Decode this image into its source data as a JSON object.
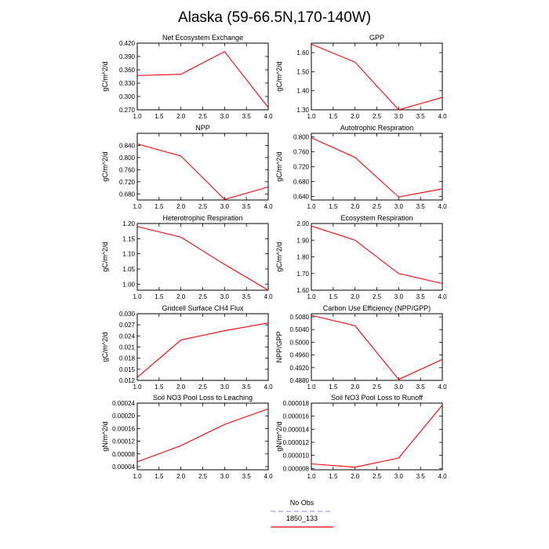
{
  "figure": {
    "title": "Alaska (59-66.5N,170-140W)"
  },
  "legend": {
    "items": [
      {
        "label": "No Obs",
        "color": "#9a9aff",
        "style": "dashed"
      },
      {
        "label": "1850_133",
        "color": "#ff0000",
        "style": "solid"
      }
    ]
  },
  "chart_data": [
    {
      "type": "line",
      "title": "Net Ecosystem Exchange",
      "xlabel": "",
      "ylabel": "gC/m^2/d",
      "x": [
        1.0,
        2.0,
        3.0,
        4.0
      ],
      "xlim": [
        1.0,
        4.0
      ],
      "xticks": [
        1.0,
        1.5,
        2.0,
        2.5,
        3.0,
        3.5,
        4.0
      ],
      "xtick_labels": [
        "1.0",
        "1.5",
        "2.0",
        "2.5",
        "3.0",
        "3.5",
        "4.0"
      ],
      "ylim": [
        0.27,
        0.42
      ],
      "yticks": [
        0.27,
        0.3,
        0.33,
        0.36,
        0.39,
        0.42
      ],
      "ytick_labels": [
        "0.270",
        "0.300",
        "0.330",
        "0.360",
        "0.390",
        "0.420"
      ],
      "series": [
        {
          "values": [
            0.347,
            0.35,
            0.401,
            0.275
          ],
          "color": "#ff0000"
        }
      ]
    },
    {
      "type": "line",
      "title": "GPP",
      "xlabel": "",
      "ylabel": "gC/m^2/d",
      "x": [
        1.0,
        2.0,
        3.0,
        4.0
      ],
      "xlim": [
        1.0,
        4.0
      ],
      "xticks": [
        1.0,
        1.5,
        2.0,
        2.5,
        3.0,
        3.5,
        4.0
      ],
      "xtick_labels": [
        "1.0",
        "1.5",
        "2.0",
        "2.5",
        "3.0",
        "3.5",
        "4.0"
      ],
      "ylim": [
        1.3,
        1.65
      ],
      "yticks": [
        1.3,
        1.4,
        1.5,
        1.6
      ],
      "ytick_labels": [
        "1.30",
        "1.40",
        "1.50",
        "1.60"
      ],
      "series": [
        {
          "values": [
            1.645,
            1.55,
            1.3,
            1.365
          ],
          "color": "#ff0000"
        }
      ]
    },
    {
      "type": "line",
      "title": "NPP",
      "xlabel": "",
      "ylabel": "gC/m^2/d",
      "x": [
        1.0,
        2.0,
        3.0,
        4.0
      ],
      "xlim": [
        1.0,
        4.0
      ],
      "xticks": [
        1.0,
        1.5,
        2.0,
        2.5,
        3.0,
        3.5,
        4.0
      ],
      "xtick_labels": [
        "1.0",
        "1.5",
        "2.0",
        "2.5",
        "3.0",
        "3.5",
        "4.0"
      ],
      "ylim": [
        0.66,
        0.88
      ],
      "yticks": [
        0.68,
        0.72,
        0.76,
        0.8,
        0.84
      ],
      "ytick_labels": [
        "0.680",
        "0.720",
        "0.760",
        "0.800",
        "0.840"
      ],
      "series": [
        {
          "values": [
            0.845,
            0.805,
            0.662,
            0.703
          ],
          "color": "#ff0000"
        }
      ]
    },
    {
      "type": "line",
      "title": "Autotrophic Respiration",
      "xlabel": "",
      "ylabel": "gC/m^2/d",
      "x": [
        1.0,
        2.0,
        3.0,
        4.0
      ],
      "xlim": [
        1.0,
        4.0
      ],
      "xticks": [
        1.0,
        1.5,
        2.0,
        2.5,
        3.0,
        3.5,
        4.0
      ],
      "xtick_labels": [
        "1.0",
        "1.5",
        "2.0",
        "2.5",
        "3.0",
        "3.5",
        "4.0"
      ],
      "ylim": [
        0.63,
        0.81
      ],
      "yticks": [
        0.64,
        0.68,
        0.72,
        0.76,
        0.8
      ],
      "ytick_labels": [
        "0.640",
        "0.680",
        "0.720",
        "0.760",
        "0.800"
      ],
      "series": [
        {
          "values": [
            0.798,
            0.745,
            0.638,
            0.66
          ],
          "color": "#ff0000"
        }
      ]
    },
    {
      "type": "line",
      "title": "Heterotrophic Respiration",
      "xlabel": "",
      "ylabel": "gC/m^2/d",
      "x": [
        1.0,
        2.0,
        3.0,
        4.0
      ],
      "xlim": [
        1.0,
        4.0
      ],
      "xticks": [
        1.0,
        1.5,
        2.0,
        2.5,
        3.0,
        3.5,
        4.0
      ],
      "xtick_labels": [
        "1.0",
        "1.5",
        "2.0",
        "2.5",
        "3.0",
        "3.5",
        "4.0"
      ],
      "ylim": [
        0.98,
        1.2
      ],
      "yticks": [
        1.0,
        1.05,
        1.1,
        1.15,
        1.2
      ],
      "ytick_labels": [
        "1.00",
        "1.05",
        "1.10",
        "1.15",
        "1.20"
      ],
      "series": [
        {
          "values": [
            1.19,
            1.155,
            1.065,
            0.98
          ],
          "color": "#ff0000"
        }
      ]
    },
    {
      "type": "line",
      "title": "Ecosystem Respiration",
      "xlabel": "",
      "ylabel": "gC/m^2/d",
      "x": [
        1.0,
        2.0,
        3.0,
        4.0
      ],
      "xlim": [
        1.0,
        4.0
      ],
      "xticks": [
        1.0,
        1.5,
        2.0,
        2.5,
        3.0,
        3.5,
        4.0
      ],
      "xtick_labels": [
        "1.0",
        "1.5",
        "2.0",
        "2.5",
        "3.0",
        "3.5",
        "4.0"
      ],
      "ylim": [
        1.6,
        2.0
      ],
      "yticks": [
        1.6,
        1.7,
        1.8,
        1.9,
        2.0
      ],
      "ytick_labels": [
        "1.60",
        "1.70",
        "1.80",
        "1.90",
        "2.00"
      ],
      "series": [
        {
          "values": [
            1.985,
            1.9,
            1.7,
            1.64
          ],
          "color": "#ff0000"
        }
      ]
    },
    {
      "type": "line",
      "title": "Gridcell Surface CH4 Flux",
      "xlabel": "",
      "ylabel": "gC/m^2/d",
      "x": [
        1.0,
        2.0,
        3.0,
        4.0
      ],
      "xlim": [
        1.0,
        4.0
      ],
      "xticks": [
        1.0,
        1.5,
        2.0,
        2.5,
        3.0,
        3.5,
        4.0
      ],
      "xtick_labels": [
        "1.0",
        "1.5",
        "2.0",
        "2.5",
        "3.0",
        "3.5",
        "4.0"
      ],
      "ylim": [
        0.012,
        0.03
      ],
      "yticks": [
        0.012,
        0.015,
        0.018,
        0.021,
        0.024,
        0.027,
        0.03
      ],
      "ytick_labels": [
        "0.012",
        "0.015",
        "0.018",
        "0.021",
        "0.024",
        "0.027",
        "0.030"
      ],
      "series": [
        {
          "values": [
            0.0128,
            0.0229,
            0.0254,
            0.0275
          ],
          "color": "#ff0000"
        }
      ]
    },
    {
      "type": "line",
      "title": "Carbon Use Efficiency (NPP/GPP)",
      "xlabel": "",
      "ylabel": "NPP/GPP",
      "x": [
        1.0,
        2.0,
        3.0,
        4.0
      ],
      "xlim": [
        1.0,
        4.0
      ],
      "xticks": [
        1.0,
        1.5,
        2.0,
        2.5,
        3.0,
        3.5,
        4.0
      ],
      "xtick_labels": [
        "1.0",
        "1.5",
        "2.0",
        "2.5",
        "3.0",
        "3.5",
        "4.0"
      ],
      "ylim": [
        0.488,
        0.509
      ],
      "yticks": [
        0.488,
        0.492,
        0.496,
        0.5,
        0.504,
        0.508
      ],
      "ytick_labels": [
        "0.4880",
        "0.4920",
        "0.4960",
        "0.5000",
        "0.5040",
        "0.5080"
      ],
      "series": [
        {
          "values": [
            0.5085,
            0.5052,
            0.4883,
            0.4946
          ],
          "color": "#ff0000"
        }
      ]
    },
    {
      "type": "line",
      "title": "Soil NO3 Pool Loss to Leaching",
      "xlabel": "",
      "ylabel": "gN/m^2/d",
      "x": [
        1.0,
        2.0,
        3.0,
        4.0
      ],
      "xlim": [
        1.0,
        4.0
      ],
      "xticks": [
        1.0,
        1.5,
        2.0,
        2.5,
        3.0,
        3.5,
        4.0
      ],
      "xtick_labels": [
        "1.0",
        "1.5",
        "2.0",
        "2.5",
        "3.0",
        "3.5",
        "4.0"
      ],
      "ylim": [
        3e-05,
        0.00024
      ],
      "yticks": [
        4e-05,
        8e-05,
        0.00012,
        0.00016,
        0.0002,
        0.00024
      ],
      "ytick_labels": [
        "0.00004",
        "0.00008",
        "0.00012",
        "0.00016",
        "0.00020",
        "0.00024"
      ],
      "series": [
        {
          "values": [
            5.5e-05,
            0.000106,
            0.000173,
            0.000222
          ],
          "color": "#ff0000"
        }
      ]
    },
    {
      "type": "line",
      "title": "Soil NO3 Pool Loss to Runoff",
      "xlabel": "",
      "ylabel": "gN/m^2/d",
      "x": [
        1.0,
        2.0,
        3.0,
        4.0
      ],
      "xlim": [
        1.0,
        4.0
      ],
      "xticks": [
        1.0,
        1.5,
        2.0,
        2.5,
        3.0,
        3.5,
        4.0
      ],
      "xtick_labels": [
        "1.0",
        "1.5",
        "2.0",
        "2.5",
        "3.0",
        "3.5",
        "4.0"
      ],
      "ylim": [
        7.8e-06,
        1.8e-05
      ],
      "yticks": [
        8e-06,
        1e-05,
        1.2e-05,
        1.4e-05,
        1.6e-05,
        1.8e-05
      ],
      "ytick_labels": [
        "0.000008",
        "0.000010",
        "0.000012",
        "0.000014",
        "0.000016",
        "0.000018"
      ],
      "series": [
        {
          "values": [
            8.7e-06,
            8.2e-06,
            9.6e-06,
            1.77e-05
          ],
          "color": "#ff0000"
        }
      ]
    }
  ]
}
